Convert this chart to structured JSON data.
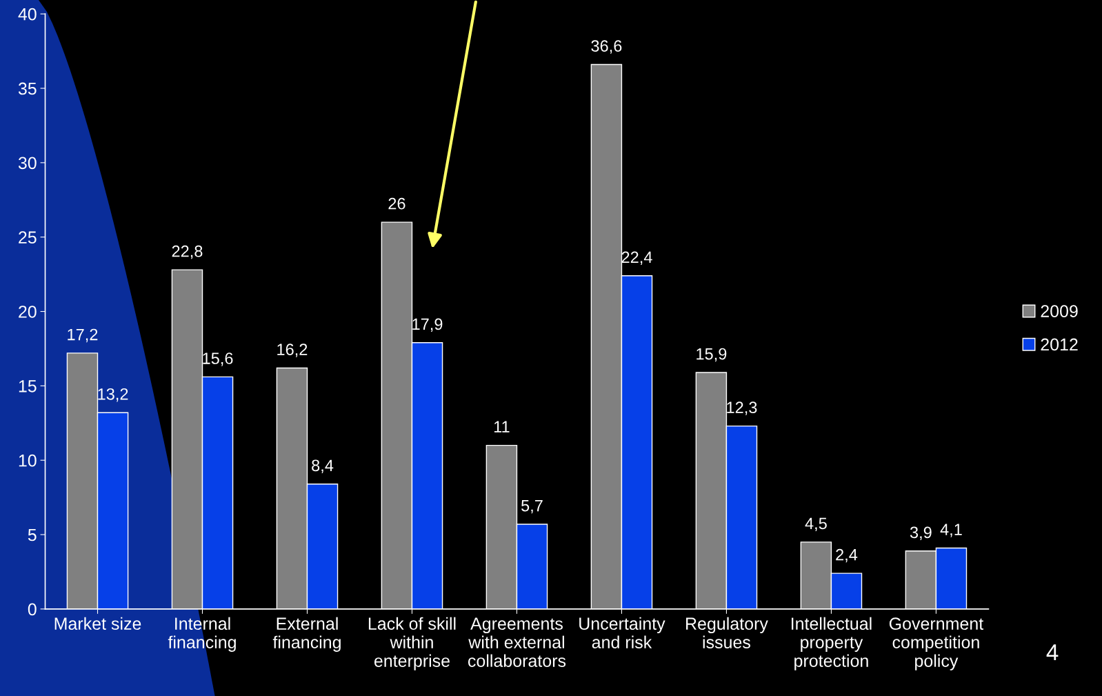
{
  "chart_data": {
    "type": "bar",
    "categories": [
      "Market size",
      "Internal\nfinancing",
      "External\nfinancing",
      "Lack of skill\nwithin\nenterprise",
      "Agreements\nwith external\ncollaborators",
      "Uncertainty\nand risk",
      "Regulatory\nissues",
      "Intellectual\nproperty\nprotection",
      "Government\ncompetition\npolicy"
    ],
    "series": [
      {
        "name": "2009",
        "color": "#808080",
        "values": [
          17.2,
          22.8,
          16.2,
          26,
          11,
          36.6,
          15.9,
          4.5,
          3.9
        ],
        "value_labels": [
          "17,2",
          "22,8",
          "16,2",
          "26",
          "11",
          "36,6",
          "15,9",
          "4,5",
          "3,9"
        ]
      },
      {
        "name": "2012",
        "color": "#0640e8",
        "values": [
          13.2,
          15.6,
          8.4,
          17.9,
          5.7,
          22.4,
          12.3,
          2.4,
          4.1
        ],
        "value_labels": [
          "13,2",
          "15,6",
          "8,4",
          "17,9",
          "5,7",
          "22,4",
          "12,3",
          "2,4",
          "4,1"
        ]
      }
    ],
    "ylim": [
      0,
      40
    ],
    "yticks": [
      0,
      5,
      10,
      15,
      20,
      25,
      30,
      35,
      40
    ],
    "grid": false,
    "legend": "right",
    "annotations": [
      "4"
    ]
  }
}
